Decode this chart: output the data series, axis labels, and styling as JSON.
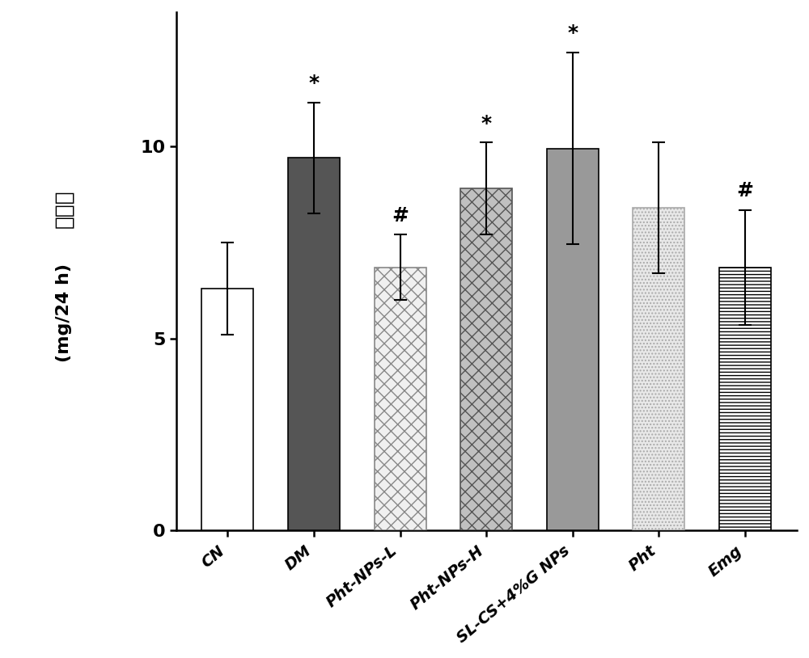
{
  "categories": [
    "CN",
    "DM",
    "Pht-NPs-L",
    "Pht-NPs-H",
    "SL-CS+4%G NPs",
    "Pht",
    "Emg"
  ],
  "values": [
    6.3,
    9.7,
    6.85,
    8.9,
    9.95,
    8.4,
    6.85
  ],
  "errors": [
    1.2,
    1.45,
    0.85,
    1.2,
    2.5,
    1.7,
    1.5
  ],
  "significance": [
    "",
    "*",
    "#",
    "*",
    "*",
    "",
    "#"
  ],
  "ylabel_chinese": "尿蜗白",
  "ylabel_english": "(mg/24 h)",
  "ylim": [
    0,
    13.5
  ],
  "yticks": [
    0,
    5,
    10
  ],
  "bar_face_colors": [
    "#ffffff",
    "#555555",
    "#e8e8e8",
    "#c8c8c8",
    "#999999",
    "#e0e0e0",
    "#f8f8f8"
  ],
  "hatch_patterns": [
    "",
    "",
    "xx",
    "xx",
    "",
    "....",
    "----"
  ],
  "hatch_colors": [
    "black",
    "black",
    "#aaaaaa",
    "#888888",
    "black",
    "#aaaaaa",
    "black"
  ],
  "fig_width": 10.0,
  "fig_height": 8.14,
  "bar_width": 0.6,
  "sig_fontsize": 18,
  "tick_fontsize": 16,
  "ylabel_fontsize": 18
}
